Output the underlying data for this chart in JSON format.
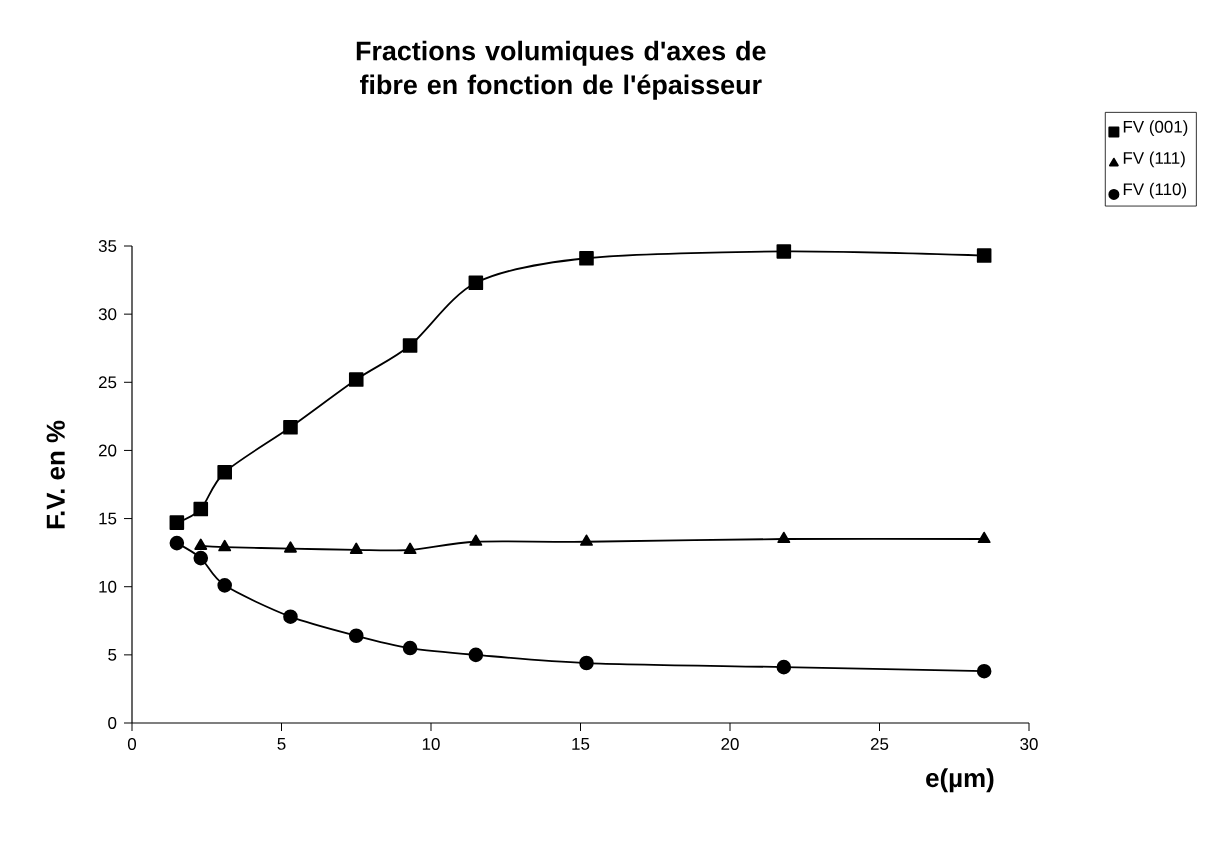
{
  "chart_data": {
    "type": "line",
    "title": "Fractions volumiques d'axes de fibre en fonction de l'épaisseur",
    "xlabel": "e(µm)",
    "ylabel": "F.V. en %",
    "x": [
      1.5,
      2.3,
      3.1,
      5.3,
      7.5,
      9.3,
      11.5,
      15.2,
      21.8,
      28.5
    ],
    "series": [
      {
        "name": "FV (001)",
        "color": "#000000",
        "marker": "square",
        "values": [
          14.7,
          15.7,
          18.4,
          21.7,
          25.2,
          27.7,
          32.3,
          34.1,
          34.6,
          34.3
        ]
      },
      {
        "name": "FV (111)",
        "color": "#000000",
        "marker": "triangle",
        "values": [
          null,
          13.0,
          12.9,
          12.8,
          12.7,
          12.7,
          13.3,
          13.3,
          13.5,
          13.5
        ]
      },
      {
        "name": "FV (110)",
        "color": "#000000",
        "marker": "circle",
        "values": [
          13.2,
          12.1,
          10.1,
          7.8,
          6.4,
          5.5,
          5.0,
          4.4,
          4.1,
          3.8
        ]
      }
    ],
    "xlim": [
      0,
      30
    ],
    "ylim": [
      0,
      35
    ],
    "xticks": [
      0,
      5,
      10,
      15,
      20,
      25,
      30
    ],
    "yticks": [
      0,
      5,
      10,
      15,
      20,
      25,
      30,
      35
    ],
    "legend": "top right",
    "line_style": "solid"
  }
}
